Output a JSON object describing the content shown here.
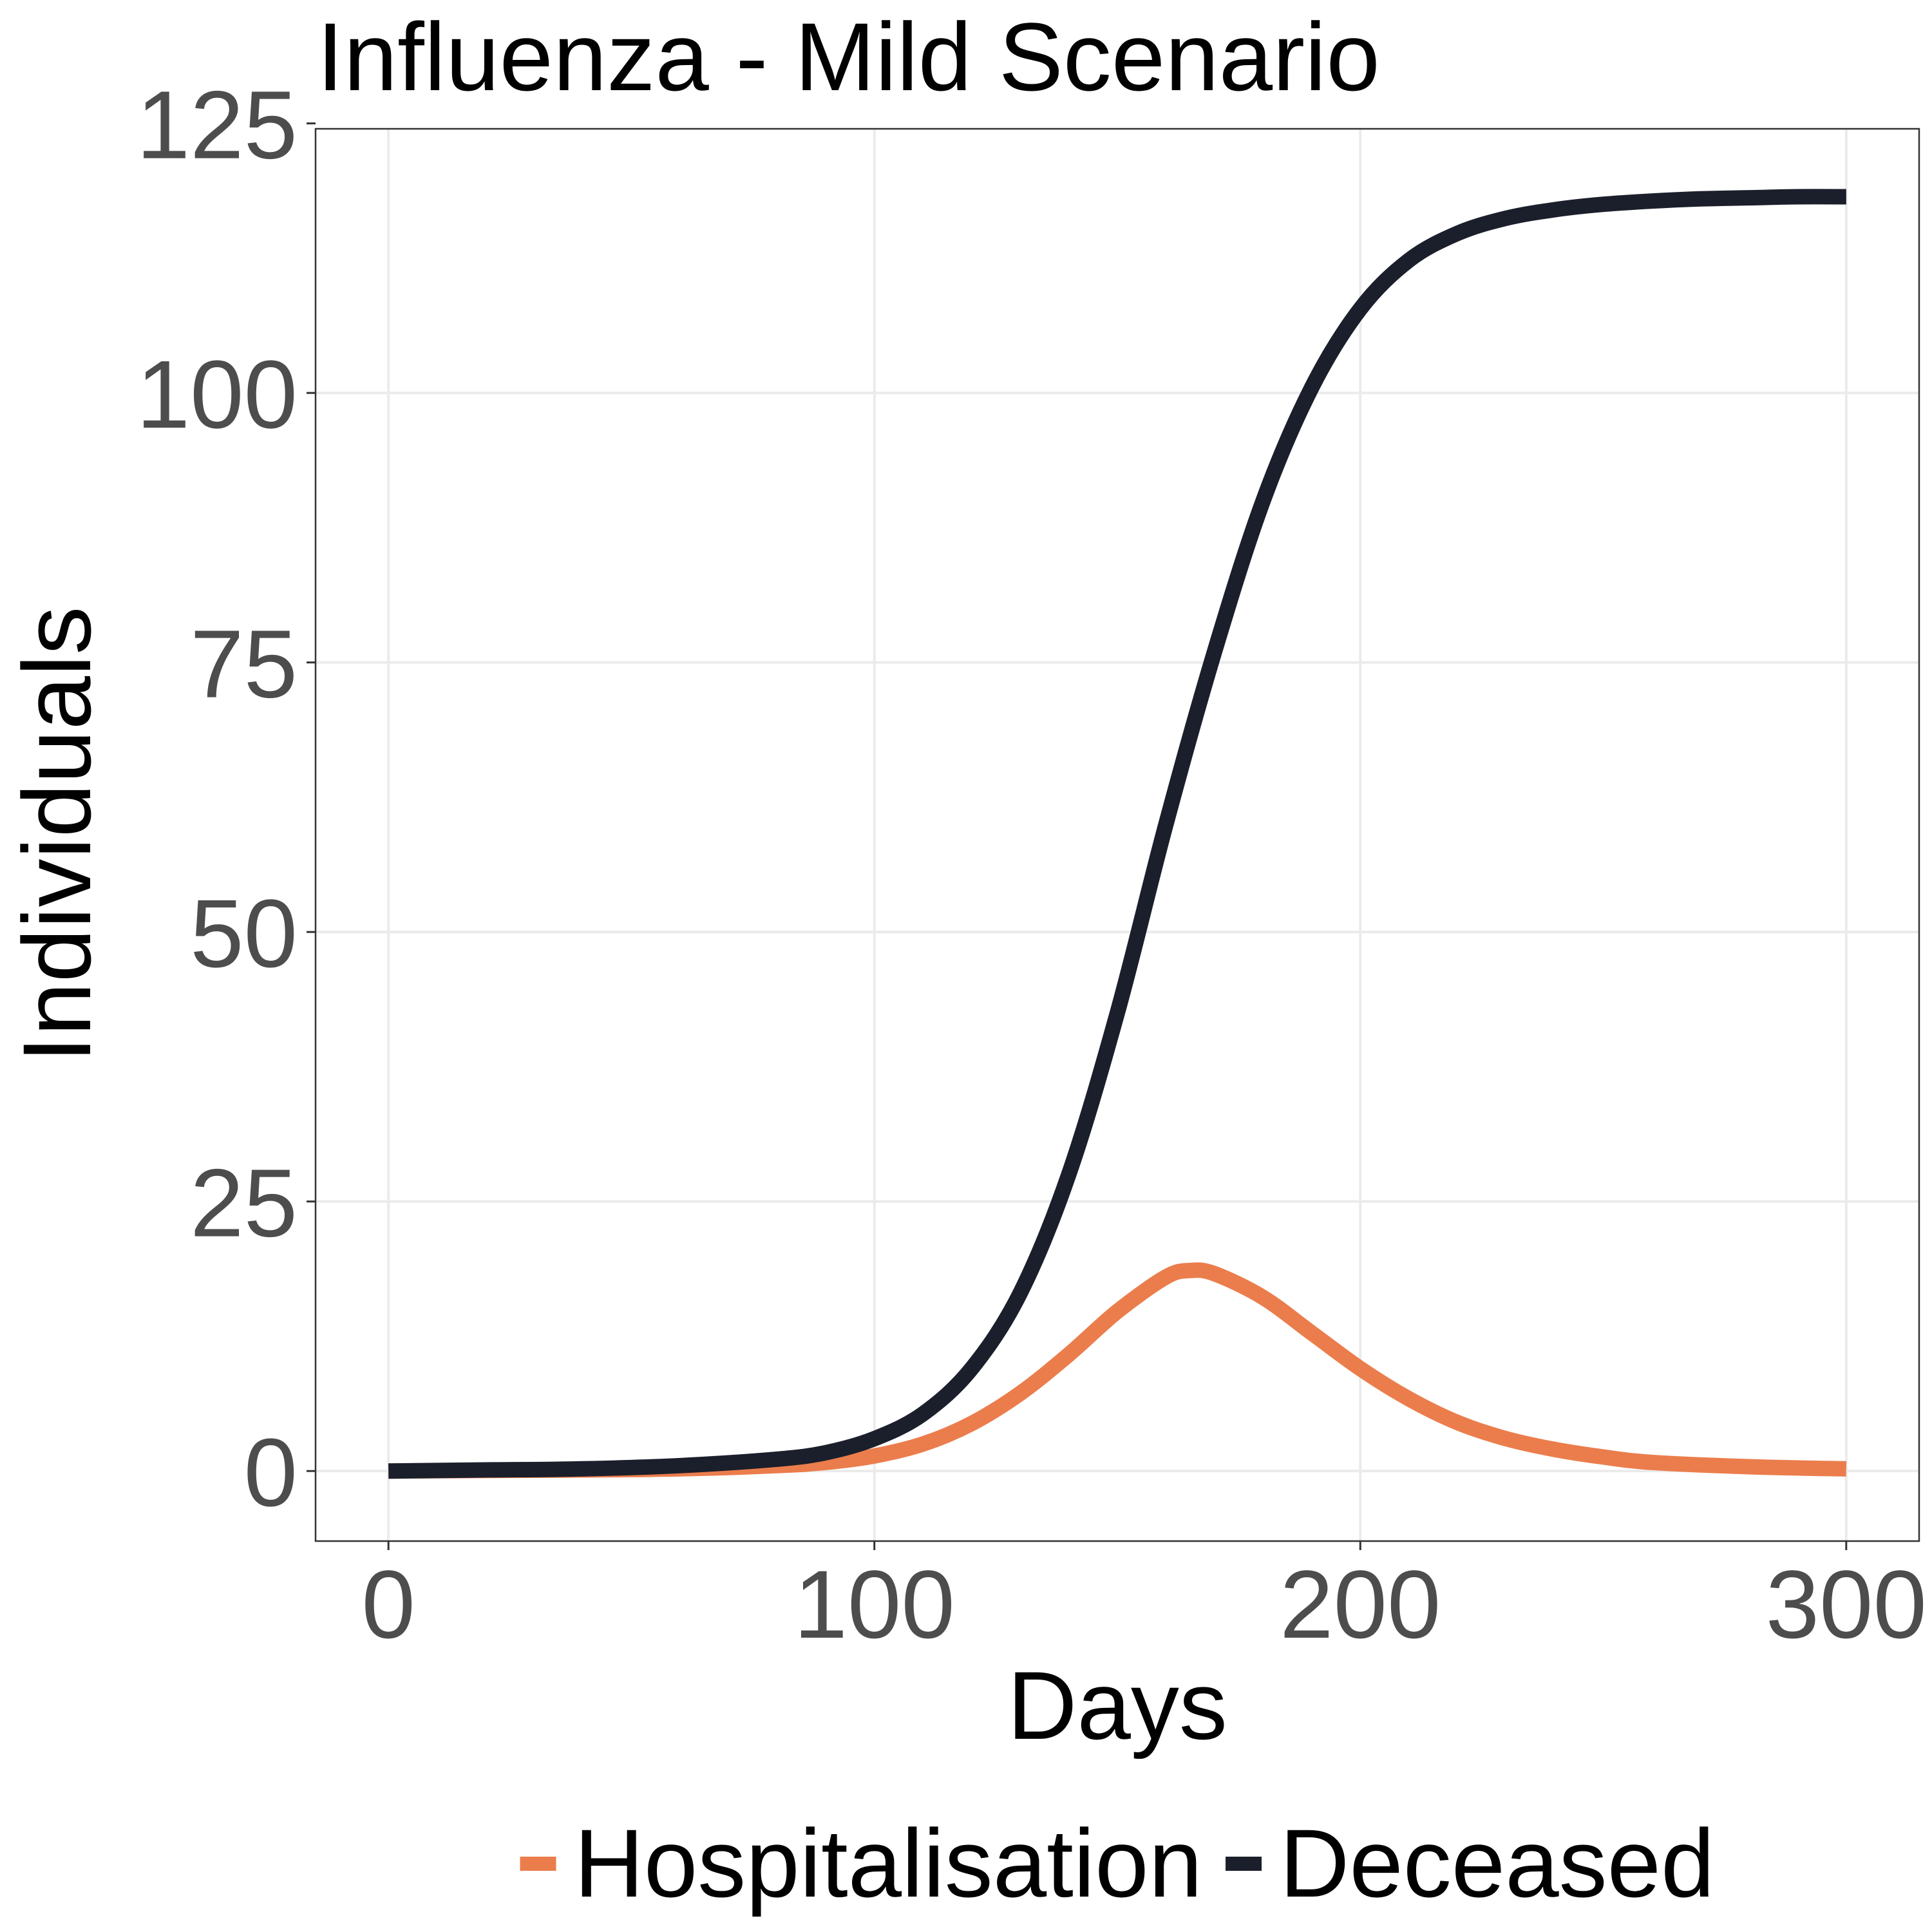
{
  "chart_data": {
    "type": "line",
    "title": "Influenza - Mild Scenario",
    "xlabel": "Days",
    "ylabel": "Individuals",
    "xlim": [
      -15,
      315
    ],
    "ylim": [
      -6.5,
      124.5
    ],
    "xticks": [
      0,
      100,
      200,
      300
    ],
    "yticks": [
      0,
      25,
      50,
      75,
      100,
      125
    ],
    "grid": true,
    "legend_position": "bottom",
    "series": [
      {
        "name": "Hospitalisation",
        "color": "#EB7D4C",
        "x": [
          0,
          20,
          40,
          60,
          80,
          90,
          100,
          110,
          120,
          130,
          140,
          150,
          160,
          165,
          170,
          180,
          190,
          200,
          210,
          220,
          230,
          240,
          250,
          260,
          280,
          300
        ],
        "y": [
          0,
          0.05,
          0.1,
          0.2,
          0.5,
          0.8,
          1.4,
          2.5,
          4.4,
          7.2,
          10.8,
          14.8,
          18.0,
          18.6,
          18.3,
          16.1,
          12.8,
          9.5,
          6.7,
          4.5,
          3.0,
          2.0,
          1.3,
          0.8,
          0.4,
          0.2
        ]
      },
      {
        "name": "Deceased",
        "color": "#1B1F2B",
        "x": [
          0,
          20,
          40,
          60,
          80,
          90,
          100,
          110,
          120,
          130,
          140,
          150,
          160,
          170,
          180,
          190,
          200,
          210,
          220,
          230,
          240,
          250,
          260,
          270,
          280,
          290,
          300
        ],
        "y": [
          0,
          0.1,
          0.2,
          0.5,
          1.1,
          1.7,
          3.0,
          5.3,
          9.5,
          16.5,
          27.5,
          42.5,
          60.0,
          76.0,
          90.0,
          100.5,
          107.8,
          112.3,
          114.8,
          116.2,
          117.0,
          117.5,
          117.8,
          118.0,
          118.1,
          118.2,
          118.2
        ]
      }
    ]
  }
}
